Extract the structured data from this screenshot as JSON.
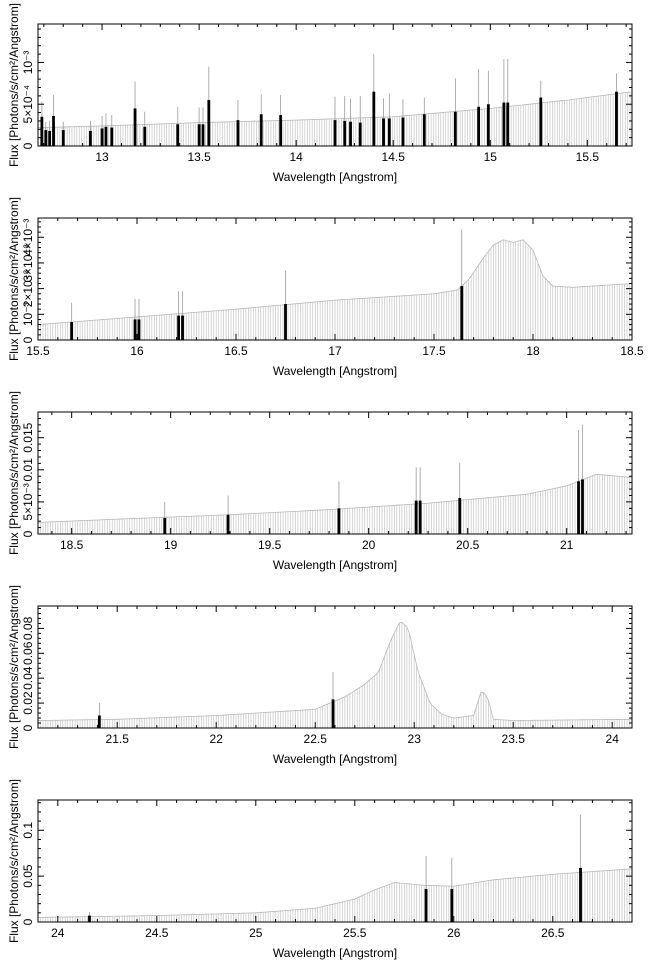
{
  "chart_data": [
    {
      "type": "bar",
      "xlabel": "Wavelength [Angstrom]",
      "ylabel": "Flux [Photons/s/cm²/Angstrom]",
      "xlim": [
        12.67,
        15.73
      ],
      "ylim": [
        0,
        0.00146
      ],
      "x_ticks": [
        13,
        13.5,
        14,
        14.5,
        15,
        15.5
      ],
      "x_tick_labels": [
        "13",
        "13.5",
        "14",
        "14.5",
        "15",
        "15.5"
      ],
      "y_ticks": [
        0.0005,
        0.001
      ],
      "y_tick_labels": [
        "5×10⁻⁴",
        "10⁻³"
      ],
      "grid": false,
      "continuum": {
        "x": [
          12.67,
          13.0,
          13.5,
          14.0,
          14.5,
          15.0,
          15.4,
          15.73
        ],
        "y": [
          0.00022,
          0.00024,
          0.00028,
          0.00031,
          0.00035,
          0.00045,
          0.00055,
          0.00065
        ]
      },
      "lines": {
        "x": [
          12.69,
          12.71,
          12.73,
          12.75,
          12.8,
          12.94,
          13.0,
          13.02,
          13.05,
          13.17,
          13.22,
          13.39,
          13.5,
          13.52,
          13.55,
          13.7,
          13.82,
          13.92,
          14.2,
          14.25,
          14.28,
          14.33,
          14.4,
          14.45,
          14.48,
          14.55,
          14.66,
          14.82,
          14.94,
          14.99,
          15.07,
          15.09,
          15.26,
          15.65
        ],
        "y": [
          0.00035,
          0.00019,
          0.00018,
          0.00036,
          0.00019,
          0.00018,
          0.00021,
          0.00023,
          0.00022,
          0.00045,
          0.00023,
          0.00026,
          0.00026,
          0.00026,
          0.00055,
          0.00031,
          0.00038,
          0.00037,
          0.00031,
          0.0003,
          0.00029,
          0.00028,
          0.00065,
          0.00033,
          0.00033,
          0.00034,
          0.00038,
          0.00041,
          0.00047,
          0.0005,
          0.00052,
          0.00052,
          0.00058,
          0.00065
        ],
        "err": [
          0.00018,
          0.0001,
          0.00012,
          0.00025,
          0.0001,
          0.00012,
          0.00015,
          0.00016,
          0.00015,
          0.00032,
          0.00018,
          0.00021,
          0.0002,
          0.0002,
          0.0004,
          0.00024,
          0.00024,
          0.00024,
          0.00028,
          0.0003,
          0.00028,
          0.00032,
          0.00045,
          0.00024,
          0.0003,
          0.00022,
          0.0002,
          0.0004,
          0.00045,
          0.0004,
          0.00052,
          0.00052,
          0.0002,
          0.00022
        ]
      }
    },
    {
      "type": "bar",
      "xlabel": "Wavelength [Angstrom]",
      "ylabel": "Flux [Photons/s/cm²/Angstrom]",
      "xlim": [
        15.5,
        18.5
      ],
      "ylim": [
        0,
        0.00475
      ],
      "x_ticks": [
        15.5,
        16,
        16.5,
        17,
        17.5,
        18,
        18.5
      ],
      "x_tick_labels": [
        "15.5",
        "16",
        "16.5",
        "17",
        "17.5",
        "18",
        "18.5"
      ],
      "y_ticks": [
        0.001,
        0.002,
        0.003,
        0.004
      ],
      "y_tick_labels": [
        "10⁻³",
        "2×10⁻³",
        "3×10⁻³",
        "4×10⁻³"
      ],
      "grid": false,
      "continuum": {
        "x": [
          15.5,
          16.0,
          16.5,
          17.0,
          17.5,
          17.62,
          17.68,
          17.75,
          17.8,
          17.85,
          17.9,
          17.95,
          18.0,
          18.05,
          18.1,
          18.2,
          18.5
        ],
        "y": [
          0.0006,
          0.0009,
          0.0012,
          0.00155,
          0.0018,
          0.00195,
          0.0024,
          0.0032,
          0.0037,
          0.0039,
          0.0038,
          0.0039,
          0.0035,
          0.0025,
          0.0021,
          0.00205,
          0.0022
        ]
      },
      "lines": {
        "x": [
          15.67,
          15.99,
          16.01,
          16.21,
          16.23,
          16.75,
          17.64
        ],
        "y": [
          0.0007,
          0.0008,
          0.0008,
          0.00095,
          0.00095,
          0.0014,
          0.0021
        ],
        "err": [
          0.00075,
          0.0008,
          0.0008,
          0.00095,
          0.00095,
          0.0013,
          0.0022
        ]
      }
    },
    {
      "type": "bar",
      "xlabel": "Wavelength [Angstrom]",
      "ylabel": "Flux [Photons/s/cm²/Angstrom]",
      "xlim": [
        18.33,
        21.33
      ],
      "ylim": [
        0,
        0.019
      ],
      "x_ticks": [
        18.5,
        19,
        19.5,
        20,
        20.5,
        21
      ],
      "x_tick_labels": [
        "18.5",
        "19",
        "19.5",
        "20",
        "20.5",
        "21"
      ],
      "y_ticks": [
        0.005,
        0.01,
        0.015
      ],
      "y_tick_labels": [
        "5×10⁻³",
        "0.01",
        "0.015"
      ],
      "grid": false,
      "continuum": {
        "x": [
          18.33,
          18.8,
          19.3,
          19.8,
          20.3,
          20.8,
          21.0,
          21.15,
          21.33
        ],
        "y": [
          0.0018,
          0.0024,
          0.003,
          0.0038,
          0.0048,
          0.0062,
          0.0075,
          0.0093,
          0.0088
        ]
      },
      "lines": {
        "x": [
          18.97,
          19.29,
          19.85,
          20.24,
          20.26,
          20.46,
          21.06,
          21.08
        ],
        "y": [
          0.0025,
          0.003,
          0.004,
          0.0052,
          0.0052,
          0.0056,
          0.0082,
          0.0085
        ],
        "err": [
          0.0025,
          0.003,
          0.0042,
          0.0052,
          0.0052,
          0.0055,
          0.008,
          0.0085
        ]
      }
    },
    {
      "type": "bar",
      "xlabel": "Wavelength [Angstrom]",
      "ylabel": "Flux [Photons/s/cm²/Angstrom]",
      "xlim": [
        21.1,
        24.1
      ],
      "ylim": [
        0,
        0.098
      ],
      "x_ticks": [
        21.5,
        22,
        22.5,
        23,
        23.5,
        24
      ],
      "x_tick_labels": [
        "21.5",
        "22",
        "22.5",
        "23",
        "23.5",
        "24"
      ],
      "y_ticks": [
        0.02,
        0.04,
        0.06,
        0.08
      ],
      "y_tick_labels": [
        "0.02",
        "0.04",
        "0.06",
        "0.08"
      ],
      "grid": false,
      "continuum": {
        "x": [
          21.1,
          21.5,
          22.0,
          22.5,
          22.65,
          22.75,
          22.82,
          22.88,
          22.93,
          22.97,
          23.02,
          23.08,
          23.14,
          23.2,
          23.3,
          23.34,
          23.37,
          23.4,
          23.5,
          24.1
        ],
        "y": [
          0.006,
          0.007,
          0.01,
          0.015,
          0.025,
          0.035,
          0.045,
          0.07,
          0.086,
          0.08,
          0.045,
          0.02,
          0.011,
          0.008,
          0.01,
          0.03,
          0.025,
          0.007,
          0.006,
          0.007
        ]
      },
      "lines": {
        "x": [
          21.41,
          22.59
        ],
        "y": [
          0.01,
          0.023
        ],
        "err": [
          0.01,
          0.022
        ]
      }
    },
    {
      "type": "bar",
      "xlabel": "Wavelength [Angstrom]",
      "ylabel": "Flux [Photons/s/cm²/Angstrom]",
      "xlim": [
        23.9,
        26.9
      ],
      "ylim": [
        0,
        0.133
      ],
      "x_ticks": [
        24,
        24.5,
        25,
        25.5,
        26,
        26.5
      ],
      "x_tick_labels": [
        "24",
        "24.5",
        "25",
        "25.5",
        "26",
        "26.5"
      ],
      "y_ticks": [
        0.05,
        0.1
      ],
      "y_tick_labels": [
        "0.05",
        "0.1"
      ],
      "grid": false,
      "continuum": {
        "x": [
          23.9,
          24.5,
          25.0,
          25.3,
          25.5,
          25.6,
          25.7,
          25.85,
          26.0,
          26.2,
          26.5,
          26.9
        ],
        "y": [
          0.005,
          0.007,
          0.01,
          0.015,
          0.025,
          0.035,
          0.043,
          0.04,
          0.039,
          0.046,
          0.052,
          0.058
        ]
      },
      "lines": {
        "x": [
          24.16,
          25.86,
          25.99,
          26.64
        ],
        "y": [
          0.007,
          0.036,
          0.036,
          0.059
        ],
        "err": [
          0.004,
          0.036,
          0.034,
          0.058
        ]
      }
    }
  ]
}
